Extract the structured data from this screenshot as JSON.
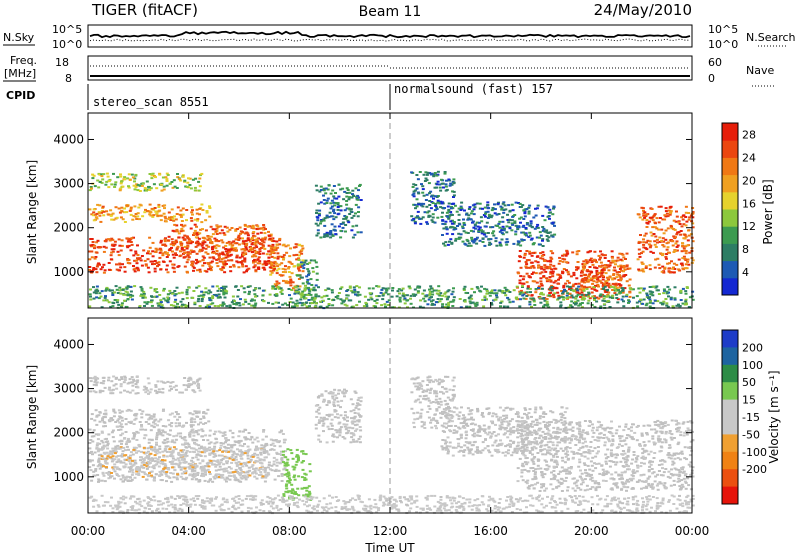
{
  "header": {
    "radar": "TIGER (fitACF)",
    "beam": "Beam 11",
    "date": "24/May/2010"
  },
  "top_panels": {
    "nsky_label": "N.Sky",
    "nsearch_label": "N.Search",
    "nsky_ticks": [
      "10^5",
      "10^0"
    ],
    "nsearch_ticks": [
      "10^5",
      "10^0"
    ],
    "freq_label": "Freq.",
    "freq_unit": "[MHz]",
    "freq_ticks": [
      "18",
      "8"
    ],
    "nave_label": "Nave",
    "nave_ticks": [
      "60",
      "0"
    ],
    "cpid_label": "CPID",
    "cpid_segments": [
      {
        "name": "stereo_scan 8551",
        "start_hour": 0,
        "end_hour": 12
      },
      {
        "name": "normalsound (fast) 157",
        "start_hour": 12,
        "end_hour": 24
      }
    ]
  },
  "colors": {
    "power_scale": [
      "#1428d2",
      "#1e5ab4",
      "#2d7d64",
      "#3c9b50",
      "#8cc83c",
      "#e6d22d",
      "#f0a020",
      "#f07814",
      "#eb460f",
      "#e61e0a"
    ],
    "velocity_scale": [
      "#1e3cc8",
      "#1e64a0",
      "#2d8c46",
      "#78c850",
      "#c8c8c8",
      "#c8c8c8",
      "#f0a032",
      "#f08214",
      "#eb5010",
      "#e6140a"
    ],
    "gs_gray": "#c0c0c0"
  },
  "chart_data": [
    {
      "type": "heatmap",
      "title": "Power",
      "ylabel": "Slant Range [km]",
      "xlabel": "Time UT",
      "x_range_hours": [
        0,
        24
      ],
      "ylim": [
        180,
        4600
      ],
      "y_ticks": [
        1000,
        2000,
        3000,
        4000
      ],
      "x_ticks": [
        "00:00",
        "04:00",
        "08:00",
        "12:00",
        "16:00",
        "20:00",
        "00:00"
      ],
      "colorbar_label": "Power [dB]",
      "colorbar_ticks": [
        4,
        8,
        12,
        16,
        20,
        24,
        28
      ],
      "colorbar_range": [
        0,
        30
      ],
      "regions": [
        {
          "t": [
            0.0,
            7.6
          ],
          "r": [
            1000,
            1800
          ],
          "level": 26
        },
        {
          "t": [
            3.0,
            7.3
          ],
          "r": [
            1400,
            2100
          ],
          "level": 24
        },
        {
          "t": [
            0.0,
            4.8
          ],
          "r": [
            2150,
            2550
          ],
          "level": 20
        },
        {
          "t": [
            0.0,
            4.5
          ],
          "r": [
            2850,
            3250
          ],
          "level": 14
        },
        {
          "t": [
            7.2,
            8.5
          ],
          "r": [
            600,
            1650
          ],
          "level": 22
        },
        {
          "t": [
            8.2,
            9.1
          ],
          "r": [
            300,
            1300
          ],
          "level": 9
        },
        {
          "t": [
            9.0,
            10.8
          ],
          "r": [
            1800,
            3000
          ],
          "level": 7
        },
        {
          "t": [
            12.8,
            14.5
          ],
          "r": [
            2100,
            3300
          ],
          "level": 6
        },
        {
          "t": [
            14.0,
            18.5
          ],
          "r": [
            1600,
            2600
          ],
          "level": 6
        },
        {
          "t": [
            17.0,
            21.5
          ],
          "r": [
            400,
            1500
          ],
          "level": 26
        },
        {
          "t": [
            19.5,
            21.3
          ],
          "r": [
            600,
            1300
          ],
          "level": 24
        },
        {
          "t": [
            21.8,
            24.0
          ],
          "r": [
            1000,
            2500
          ],
          "level": 24
        },
        {
          "t": [
            0.0,
            24.0
          ],
          "r": [
            200,
            700
          ],
          "level": 10
        }
      ]
    },
    {
      "type": "heatmap",
      "title": "Velocity",
      "ylabel": "Slant Range [km]",
      "xlabel": "Time UT",
      "x_range_hours": [
        0,
        24
      ],
      "ylim": [
        180,
        4600
      ],
      "y_ticks": [
        1000,
        2000,
        3000,
        4000
      ],
      "x_ticks": [
        "00:00",
        "04:00",
        "08:00",
        "12:00",
        "16:00",
        "20:00",
        "00:00"
      ],
      "colorbar_label": "Velocity [m s⁻¹]",
      "colorbar_ticks": [
        "200",
        "100",
        "50",
        "15",
        "-15",
        "-50",
        "-100",
        "-200"
      ],
      "colorbar_range": [
        -250,
        250
      ],
      "regions": [
        {
          "t": [
            0.0,
            7.8
          ],
          "r": [
            900,
            2100
          ],
          "level": 0
        },
        {
          "t": [
            0.0,
            4.8
          ],
          "r": [
            2150,
            2550
          ],
          "level": 0
        },
        {
          "t": [
            0.0,
            4.5
          ],
          "r": [
            2900,
            3300
          ],
          "level": 0
        },
        {
          "t": [
            0.5,
            7.0
          ],
          "r": [
            1000,
            1700
          ],
          "level": -40
        },
        {
          "t": [
            7.7,
            8.8
          ],
          "r": [
            500,
            1650
          ],
          "level": 70
        },
        {
          "t": [
            9.0,
            10.8
          ],
          "r": [
            1800,
            3000
          ],
          "level": 0
        },
        {
          "t": [
            12.8,
            14.5
          ],
          "r": [
            2100,
            3300
          ],
          "level": 0
        },
        {
          "t": [
            14.0,
            19.0
          ],
          "r": [
            1500,
            2600
          ],
          "level": 0
        },
        {
          "t": [
            17.0,
            24.0
          ],
          "r": [
            700,
            2300
          ],
          "level": 0
        },
        {
          "t": [
            0.0,
            24.0
          ],
          "r": [
            200,
            600
          ],
          "level": -30
        }
      ]
    }
  ]
}
